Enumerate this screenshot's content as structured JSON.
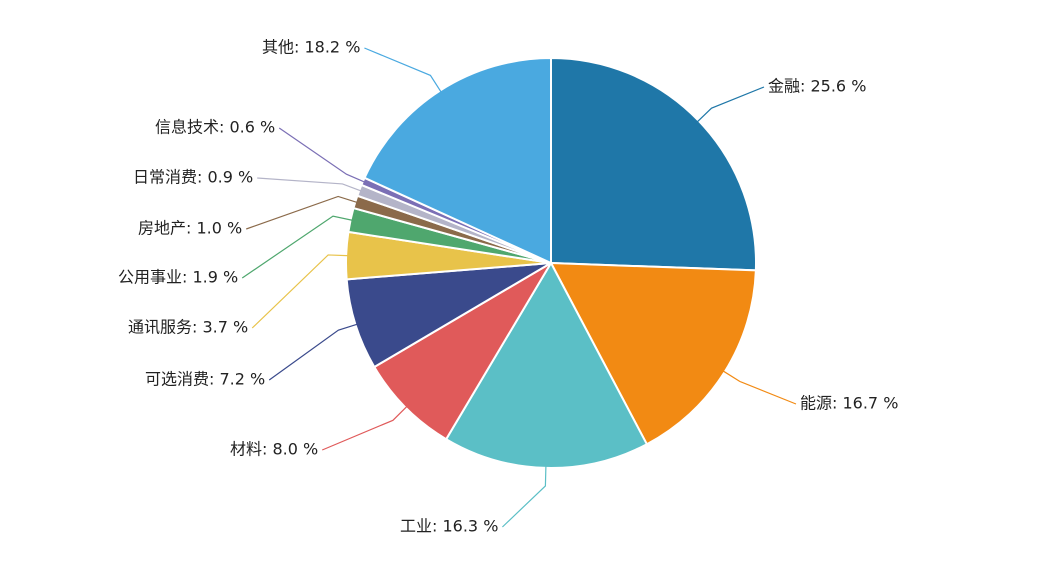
{
  "chart_data": {
    "type": "pie",
    "values": [
      25.6,
      16.7,
      16.3,
      8.0,
      7.2,
      3.7,
      1.9,
      1.0,
      0.9,
      0.6,
      18.2
    ],
    "value_labels": [
      "金融: 25.6 %",
      "能源: 16.7 %",
      "工业: 16.3 %",
      "材料: 8.0 %",
      "可选消费: 7.2 %",
      "通讯服务: 3.7 %",
      "公用事业: 1.9 %",
      "房地产: 1.0 %",
      "日常消费: 0.9 %",
      "信息技术: 0.6 %",
      "其他: 18.2 %"
    ],
    "colors": [
      "#1f77a8",
      "#f28a13",
      "#5bbfc6",
      "#e05a5a",
      "#3a4a8c",
      "#e8c34a",
      "#4fa76e",
      "#8b6a4a",
      "#b4b4c8",
      "#7b6fb5",
      "#4aa9e0"
    ]
  }
}
